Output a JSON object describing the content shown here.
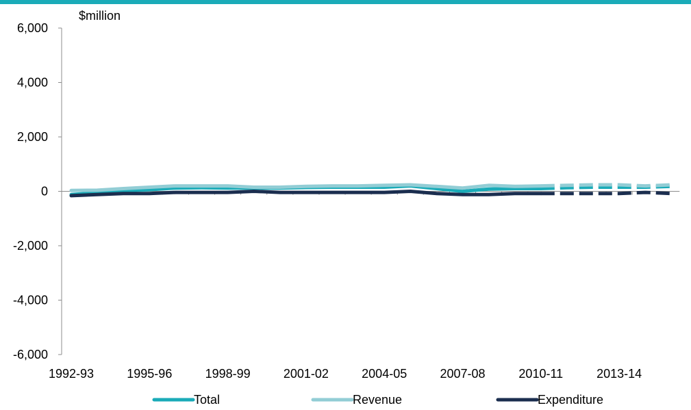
{
  "chart_data": {
    "type": "line",
    "ylabel": "$million",
    "ylim": [
      -6000,
      6000
    ],
    "y_ticks": [
      6000,
      4000,
      2000,
      0,
      -2000,
      -4000,
      -6000
    ],
    "y_tick_labels": [
      "6,000",
      "4,000",
      "2,000",
      "0",
      "-2,000",
      "-4,000",
      "-6,000"
    ],
    "categories": [
      "1992-93",
      "1993-94",
      "1994-95",
      "1995-96",
      "1996-97",
      "1997-98",
      "1998-99",
      "1999-00",
      "2000-01",
      "2001-02",
      "2002-03",
      "2003-04",
      "2004-05",
      "2005-06",
      "2006-07",
      "2007-08",
      "2008-09",
      "2009-10",
      "2010-11",
      "2011-12",
      "2012-13",
      "2013-14",
      "2014-15",
      "2015-16"
    ],
    "x_tick_labels": [
      "1992-93",
      "1995-96",
      "1998-99",
      "2001-02",
      "2004-05",
      "2007-08",
      "2010-11",
      "2013-14"
    ],
    "projection_start_category": "2010-11",
    "series": [
      {
        "name": "Total",
        "color": "#1aabb8",
        "values": [
          -120,
          -50,
          20,
          60,
          120,
          130,
          120,
          120,
          120,
          140,
          150,
          150,
          150,
          200,
          100,
          0,
          80,
          100,
          100,
          130,
          150,
          150,
          150,
          180
        ]
      },
      {
        "name": "Revenue",
        "color": "#92cdd5",
        "values": [
          30,
          40,
          100,
          150,
          200,
          200,
          200,
          150,
          150,
          180,
          200,
          200,
          220,
          240,
          180,
          120,
          220,
          180,
          200,
          220,
          240,
          240,
          200,
          240
        ]
      },
      {
        "name": "Expenditure",
        "color": "#1b2e4f",
        "values": [
          -160,
          -120,
          -80,
          -80,
          -40,
          -40,
          -40,
          0,
          -40,
          -40,
          -40,
          -40,
          -40,
          0,
          -80,
          -120,
          -120,
          -80,
          -80,
          -80,
          -80,
          -80,
          -40,
          -80
        ]
      }
    ],
    "legend_position": "bottom",
    "grid": false
  }
}
